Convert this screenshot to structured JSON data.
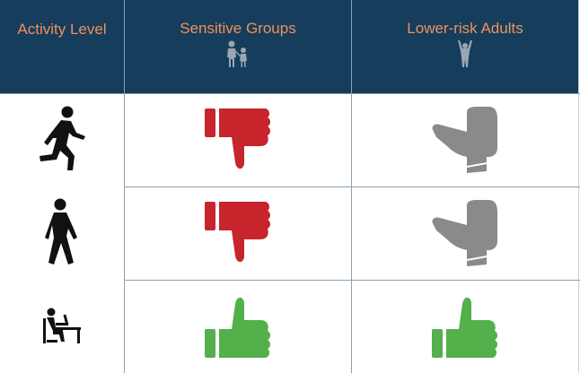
{
  "header": {
    "activity_level": "Activity Level",
    "sensitive_groups": "Sensitive Groups",
    "lower_risk_adults": "Lower-risk Adults"
  },
  "colors": {
    "header_bg": "#163d5c",
    "header_text": "#f0915a",
    "thumbs_down": "#c8242b",
    "neutral": "#8a8a8a",
    "thumbs_up": "#53b04a"
  },
  "rows": [
    {
      "activity_icon": "running-person-icon",
      "sensitive": "thumbs-down-icon",
      "lower_risk": "thumbs-sideways-icon"
    },
    {
      "activity_icon": "walking-person-icon",
      "sensitive": "thumbs-down-icon",
      "lower_risk": "thumbs-sideways-icon"
    },
    {
      "activity_icon": "person-at-desk-icon",
      "sensitive": "thumbs-up-icon",
      "lower_risk": "thumbs-up-icon"
    }
  ]
}
